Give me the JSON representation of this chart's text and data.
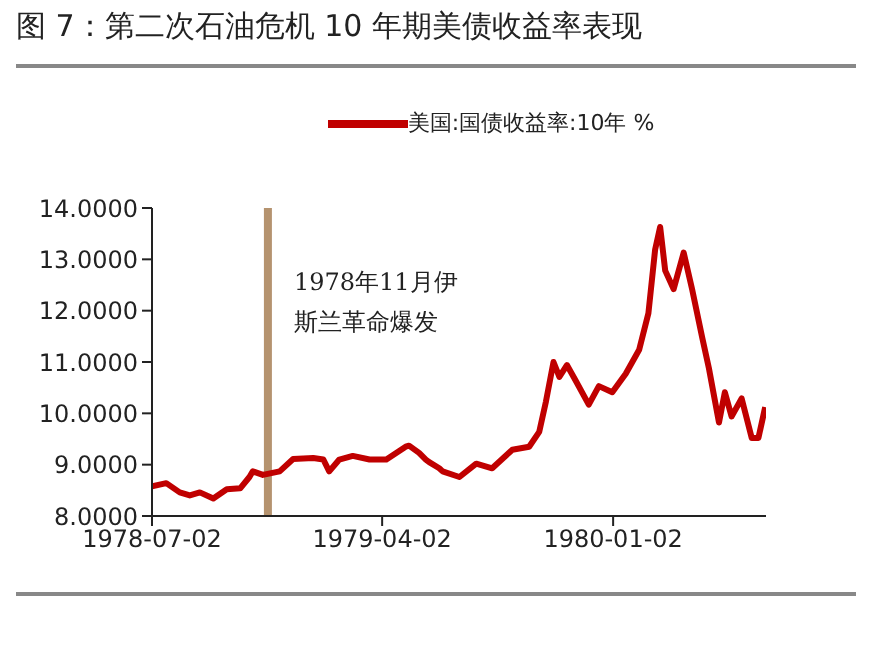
{
  "chart_data": {
    "type": "line",
    "title": "图 7：第二次石油危机 10 年期美债收益率表现",
    "x": [
      "1978-07-02",
      "1978-07-19",
      "1978-08-04",
      "1978-08-16",
      "1978-08-28",
      "1978-09-13",
      "1978-09-29",
      "1978-10-15",
      "1978-10-26",
      "1978-10-30",
      "1978-11-11",
      "1978-12-01",
      "1978-12-17",
      "1979-01-10",
      "1979-01-22",
      "1979-01-29",
      "1979-02-10",
      "1979-02-26",
      "1979-03-18",
      "1979-04-07",
      "1979-04-30",
      "1979-05-04",
      "1979-05-16",
      "1979-05-24",
      "1979-05-28",
      "1979-06-09",
      "1979-06-13",
      "1979-07-03",
      "1979-07-23",
      "1979-08-11",
      "1979-09-04",
      "1979-09-24",
      "1979-10-06",
      "1979-10-14",
      "1979-10-23",
      "1979-10-30",
      "1979-11-08",
      "1979-11-18",
      "1979-12-04",
      "1979-12-16",
      "1980-01-01",
      "1980-01-17",
      "1980-02-02",
      "1980-02-13",
      "1980-02-21",
      "1980-02-27",
      "1980-03-04",
      "1980-03-14",
      "1980-03-26",
      "1980-04-05",
      "1980-04-17",
      "1980-04-25",
      "1980-05-07",
      "1980-05-14",
      "1980-05-22",
      "1980-06-03",
      "1980-06-15",
      "1980-06-23",
      "1980-07-01"
    ],
    "series": [
      {
        "name": "美国:国债收益率:10年 %",
        "color": "#c00000",
        "values": [
          8.58,
          8.64,
          8.46,
          8.4,
          8.46,
          8.34,
          8.52,
          8.54,
          8.76,
          8.87,
          8.8,
          8.87,
          9.11,
          9.13,
          9.1,
          8.87,
          9.1,
          9.17,
          9.1,
          9.1,
          9.35,
          9.37,
          9.23,
          9.1,
          9.05,
          8.93,
          8.87,
          8.76,
          9.02,
          8.93,
          9.29,
          9.35,
          9.64,
          10.23,
          11.0,
          10.71,
          10.94,
          10.65,
          10.17,
          10.53,
          10.41,
          10.77,
          11.24,
          11.95,
          13.19,
          13.63,
          12.78,
          12.42,
          13.13,
          12.42,
          11.48,
          10.88,
          9.82,
          10.41,
          9.94,
          10.29,
          9.52,
          9.52,
          10.12
        ]
      }
    ],
    "xlim": [
      "1978-07-02",
      "1980-07-02"
    ],
    "xticks": [
      "1978-07-02",
      "1979-04-02",
      "1980-01-02"
    ],
    "ylim": [
      8,
      14
    ],
    "yticks": [
      {
        "value": 8,
        "label": "8.0000"
      },
      {
        "value": 9,
        "label": "9.0000"
      },
      {
        "value": 10,
        "label": "10.0000"
      },
      {
        "value": 11,
        "label": "11.0000"
      },
      {
        "value": 12,
        "label": "12.0000"
      },
      {
        "value": 13,
        "label": "13.0000"
      },
      {
        "value": 14,
        "label": "14.0000"
      }
    ],
    "ref_lines": [
      {
        "axis": "x",
        "value": "1978-11-17",
        "label": "1978年11月伊斯兰革命爆发",
        "color": "#b5936f"
      }
    ],
    "grid": false,
    "legend": "top",
    "marker": "none",
    "line_style": "solid"
  }
}
